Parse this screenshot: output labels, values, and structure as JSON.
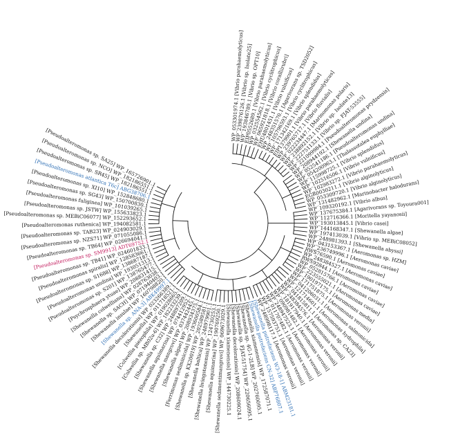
{
  "leaves": [
    {
      "label": "WP_053301974.1 [Vibrio parahaemolyticus]",
      "color": "#111111"
    },
    {
      "label": "WP_239876126.1 [Vibrio sp. Isolate25]",
      "color": "#111111"
    },
    {
      "label": "WP_193846789.1 [Vibrio sp. OPT10]",
      "color": "#111111"
    },
    {
      "label": "EIP0552689.1 [Vibrio parahaemolyticus]",
      "color": "#111111"
    },
    {
      "label": "WP_032554562.1 [Vibrio cyclitrophicus]",
      "color": "#111111"
    },
    {
      "label": "WP_065921818.1 [Vibrio coralliirubri]",
      "color": "#111111"
    },
    {
      "label": "EHU4801451.1 [Vibrio vulnificus]",
      "color": "#111111"
    },
    {
      "label": "WP_248351570.1 [Agarivorans sp. TSD2052]",
      "color": "#111111"
    },
    {
      "label": "WP_105796593.1 [Vibrio cyclitrophicus]",
      "color": "#111111"
    },
    {
      "label": "WP_171342169.1 [Vibrio splendidus]",
      "color": "#111111"
    },
    {
      "label": "EIP1379901.1 [Vibrio parahaemolyticus]",
      "color": "#111111"
    },
    {
      "label": "WP_239765717.1 [Vibrio fluvialis]",
      "color": "#111111"
    },
    {
      "label": "WP_022234447.1 [Marinomonas polaris]",
      "color": "#111111"
    },
    {
      "label": "WP_238892152.1 [Vibrio sp. Isolate13]",
      "color": "#111111"
    },
    {
      "label": "WP_222751133.1 [Vibrio sp. FJAT-53555]",
      "color": "#111111"
    },
    {
      "label": "WP_221099984.1 [Pseudoalteromonas prydzensis]",
      "color": "#111111"
    },
    {
      "label": "WP_208944192.1 [Shewanella undina]",
      "color": "#111111"
    },
    {
      "label": "WP_052541186.1 [Pseudoalteromonas undina]",
      "color": "#111111"
    },
    {
      "label": "WP_054200963.1 [Thalassotalea euphylliae]",
      "color": "#111111"
    },
    {
      "label": "WP_115998725.1 [Vibrio splendidus]",
      "color": "#111111"
    },
    {
      "label": "WP_102516506.1 [Vibrio vulnificus]",
      "color": "#111111"
    },
    {
      "label": "WP_102983272.1 [Vibrio parahaemolyticus]",
      "color": "#111111"
    },
    {
      "label": "EGR0030211.1 [Vibrio alginolyticus]",
      "color": "#111111"
    },
    {
      "label": "WP_053309720.1 [Vibrio alginolyticus]",
      "color": "#111111"
    },
    {
      "label": "WP_131482962.1 [Marinobacter halodurans]",
      "color": "#111111"
    },
    {
      "label": "WP_109320192.1 [Vibrio albus]",
      "color": "#111111"
    },
    {
      "label": "WP_137675384.1 [Agarivorans sp. Toyoura001]",
      "color": "#111111"
    },
    {
      "label": "WP_112716366.1 [Moritella yayanosii]",
      "color": "#111111"
    },
    {
      "label": "WP_193013845.1 [Vibrio casei]",
      "color": "#111111"
    },
    {
      "label": "WP_144168347.1 [Shewanella algae]",
      "color": "#111111"
    },
    {
      "label": "WP_197413039.1 [Vibrio sp. MEBiC08052]",
      "color": "#111111"
    },
    {
      "label": "WP_248981393.1 [Shewanella abyssi]",
      "color": "#111111"
    },
    {
      "label": "WP_043153367.1 [Aeromonas sp. HZM]",
      "color": "#111111"
    },
    {
      "label": "WP_236749996.1 [Aeromonas caviae]",
      "color": "#111111"
    },
    {
      "label": "RWS76590.1 [Aeromonas caviae]",
      "color": "#111111"
    },
    {
      "label": "WP_248384527.1 [Aeromonas caviae]",
      "color": "#111111"
    },
    {
      "label": "RWS92844.1 [Aeromonas caviae]",
      "color": "#111111"
    },
    {
      "label": "WP_052815766.1 [Aeromonas caviae]",
      "color": "#111111"
    },
    {
      "label": "WP_223555021.1 [Aeromonas caviae]",
      "color": "#111111"
    },
    {
      "label": "WP_190197175.1 [Aeromonas media]",
      "color": "#111111"
    },
    {
      "label": "WP_171751875.1 [Aeromonas veronii]",
      "color": "#111111"
    },
    {
      "label": "WP_041206031.1 [Aeromonas salmonicida]",
      "color": "#111111"
    },
    {
      "label": "WP_121714601.1 [Aeromonas hydrophila]",
      "color": "#111111"
    },
    {
      "label": "WP_041815811.1 [Aeromonas sp. CA23]",
      "color": "#111111"
    },
    {
      "label": "WP_248384576.1 [Aeromonas veronii]",
      "color": "#111111"
    },
    {
      "label": "WP_181917940.1 [Aeromonas veronii]",
      "color": "#111111"
    },
    {
      "label": "WP_090981482.1 [Aeromonas veronii]",
      "color": "#111111"
    },
    {
      "label": "WP_248947523.1 [Aeromonas veronii]",
      "color": "#111111"
    },
    {
      "label": "WP_011707482.1 [Aeromonas veronii]",
      "color": "#111111"
    },
    {
      "label": "WP_157593751.1 [Aeromonas veronii]",
      "color": "#111111"
    },
    {
      "label": "WP_248998117.1 [Aeromonas veronii]",
      "color": "#111111"
    },
    {
      "label": "[Shewanella putrefaciens W3-18-1] ABM23181.1",
      "color": "#2e6fb5"
    },
    {
      "label": "[Shewanella putrefaciens CN-32] ABP76807.1",
      "color": "#2e6fb5"
    },
    {
      "label": "[Shewanella xiamenensis] WP_172587071.1",
      "color": "#111111"
    },
    {
      "label": "[Shewanella sp. 4G-1-2LB] WP_202760095.1",
      "color": "#111111"
    },
    {
      "label": "[Shewanella sp. FJAT-51754] WP_220656095.1",
      "color": "#111111"
    },
    {
      "label": "[Shewanella decolorationis] WP_208609024.1",
      "color": "#111111"
    },
    {
      "label": "[Shewanella xiamenensis] WP_144730225.1",
      "color": "#111111"
    },
    {
      "label": "[Shewanella sedimentimangrovi] WP_069673029.1",
      "color": "#111111"
    },
    {
      "label": "[Shewanella aquimarina] WP_190769250.1",
      "color": "#111111"
    },
    {
      "label": "[Shewanella livingstonensis] WP_124730253.1",
      "color": "#111111"
    },
    {
      "label": "[Shewanella baltica] WP_248979901.1",
      "color": "#111111"
    },
    {
      "label": "[Shewanella sp. KX20019] WP_202589581.1",
      "color": "#111111"
    },
    {
      "label": "[Ferrimonas sediminicola] WP_193600584.1",
      "color": "#111111"
    },
    {
      "label": "[Shewanella algae] WP_208934375.1",
      "color": "#111111"
    },
    {
      "label": "[Shewanella mangrovi] WP_037442445.1",
      "color": "#111111"
    },
    {
      "label": "[Shewanella aquimarina] WP_074412952.1",
      "color": "#111111"
    },
    {
      "label": "[Shewanella sp. C32] WP_248897209.1",
      "color": "#111111"
    },
    {
      "label": "[Colwellia sp. MB02u-6] WP_182233239.1",
      "color": "#111111"
    },
    {
      "label": "[Colwellia piezophila] WP_019028665.1",
      "color": "#111111"
    },
    {
      "label": "[Shewanella] WP_011718521.1",
      "color": "#111111"
    },
    {
      "label": "[Shewanella decolorationis] WP_023266389.1",
      "color": "#111111"
    },
    {
      "label": "[Shewanella sp. ANA-3] ABK49997.1",
      "color": "#2e6fb5"
    },
    {
      "label": "[Shewanella insulae] WP_160798820.1",
      "color": "#111111"
    },
    {
      "label": "[Shewanella sp. SACH] WP_071940403.1",
      "color": "#111111"
    },
    {
      "label": "[Shewanella colwelliana] WP_028763038.1",
      "color": "#111111"
    },
    {
      "label": "[Psychrosphaera ytuae] WP_208831415.1",
      "color": "#111111"
    },
    {
      "label": "[Pseudoalteromonas sp. S201] WP_138765477.1",
      "color": "#111111"
    },
    {
      "label": "[Pseudoalteromonas undina] WP_193051313.1",
      "color": "#111111"
    },
    {
      "label": "[Pseudoalteromonas sp. S1688] WP_138687187.1",
      "color": "#111111"
    },
    {
      "label": "[Pseudoalteromonas spiralis] WP_128583661.1",
      "color": "#111111"
    },
    {
      "label": "[Pseudoalteromonas sp. TB41] WP_024601833.1",
      "color": "#111111"
    },
    {
      "label": "[Pseudoalteromonas sp. SM9913] ADT69752.1",
      "color": "#c2185b"
    },
    {
      "label": "[Pseudoalteromonas sp. TB64] WP_026694041.1",
      "color": "#111111"
    },
    {
      "label": "[Pseudoalteromonas sp. NZS71] WP_071055086.1",
      "color": "#111111"
    },
    {
      "label": "[Pseudoalteromonas sp. TAB23] WP_024903029.1",
      "color": "#111111"
    },
    {
      "label": "[Pseudoalteromonas ruthenica] WP_194082581.1",
      "color": "#111111"
    },
    {
      "label": "[Pseudoalteromonas sp. MEBiC06077] WP_152293652.1",
      "color": "#111111"
    },
    {
      "label": "[Pseudoalteromonas sp. JSTW] WP_155633823.1",
      "color": "#111111"
    },
    {
      "label": "[Pseudoalteromonas fuliginea] WP_101039265.1",
      "color": "#111111"
    },
    {
      "label": "[Pseudoalteromonas sp. SG43] WP_150700830.1",
      "color": "#111111"
    },
    {
      "label": "[Pseudoalteromonas sp. XI10] WP_152848680.1",
      "color": "#111111"
    },
    {
      "label": "[Pseudoalteromonas atlantica T6c] ABG38706.1",
      "color": "#2e6fb5"
    },
    {
      "label": "[Pseudoalteromonas sp. SR45] WP_182186551.1",
      "color": "#111111"
    },
    {
      "label": "[Pseudoalteromonas sp. NCO] WP_182186551.1",
      "color": "#111111"
    },
    {
      "label": "[Pseudoalteromonas sp. SA25] WP_165726901.1",
      "color": "#111111"
    }
  ]
}
